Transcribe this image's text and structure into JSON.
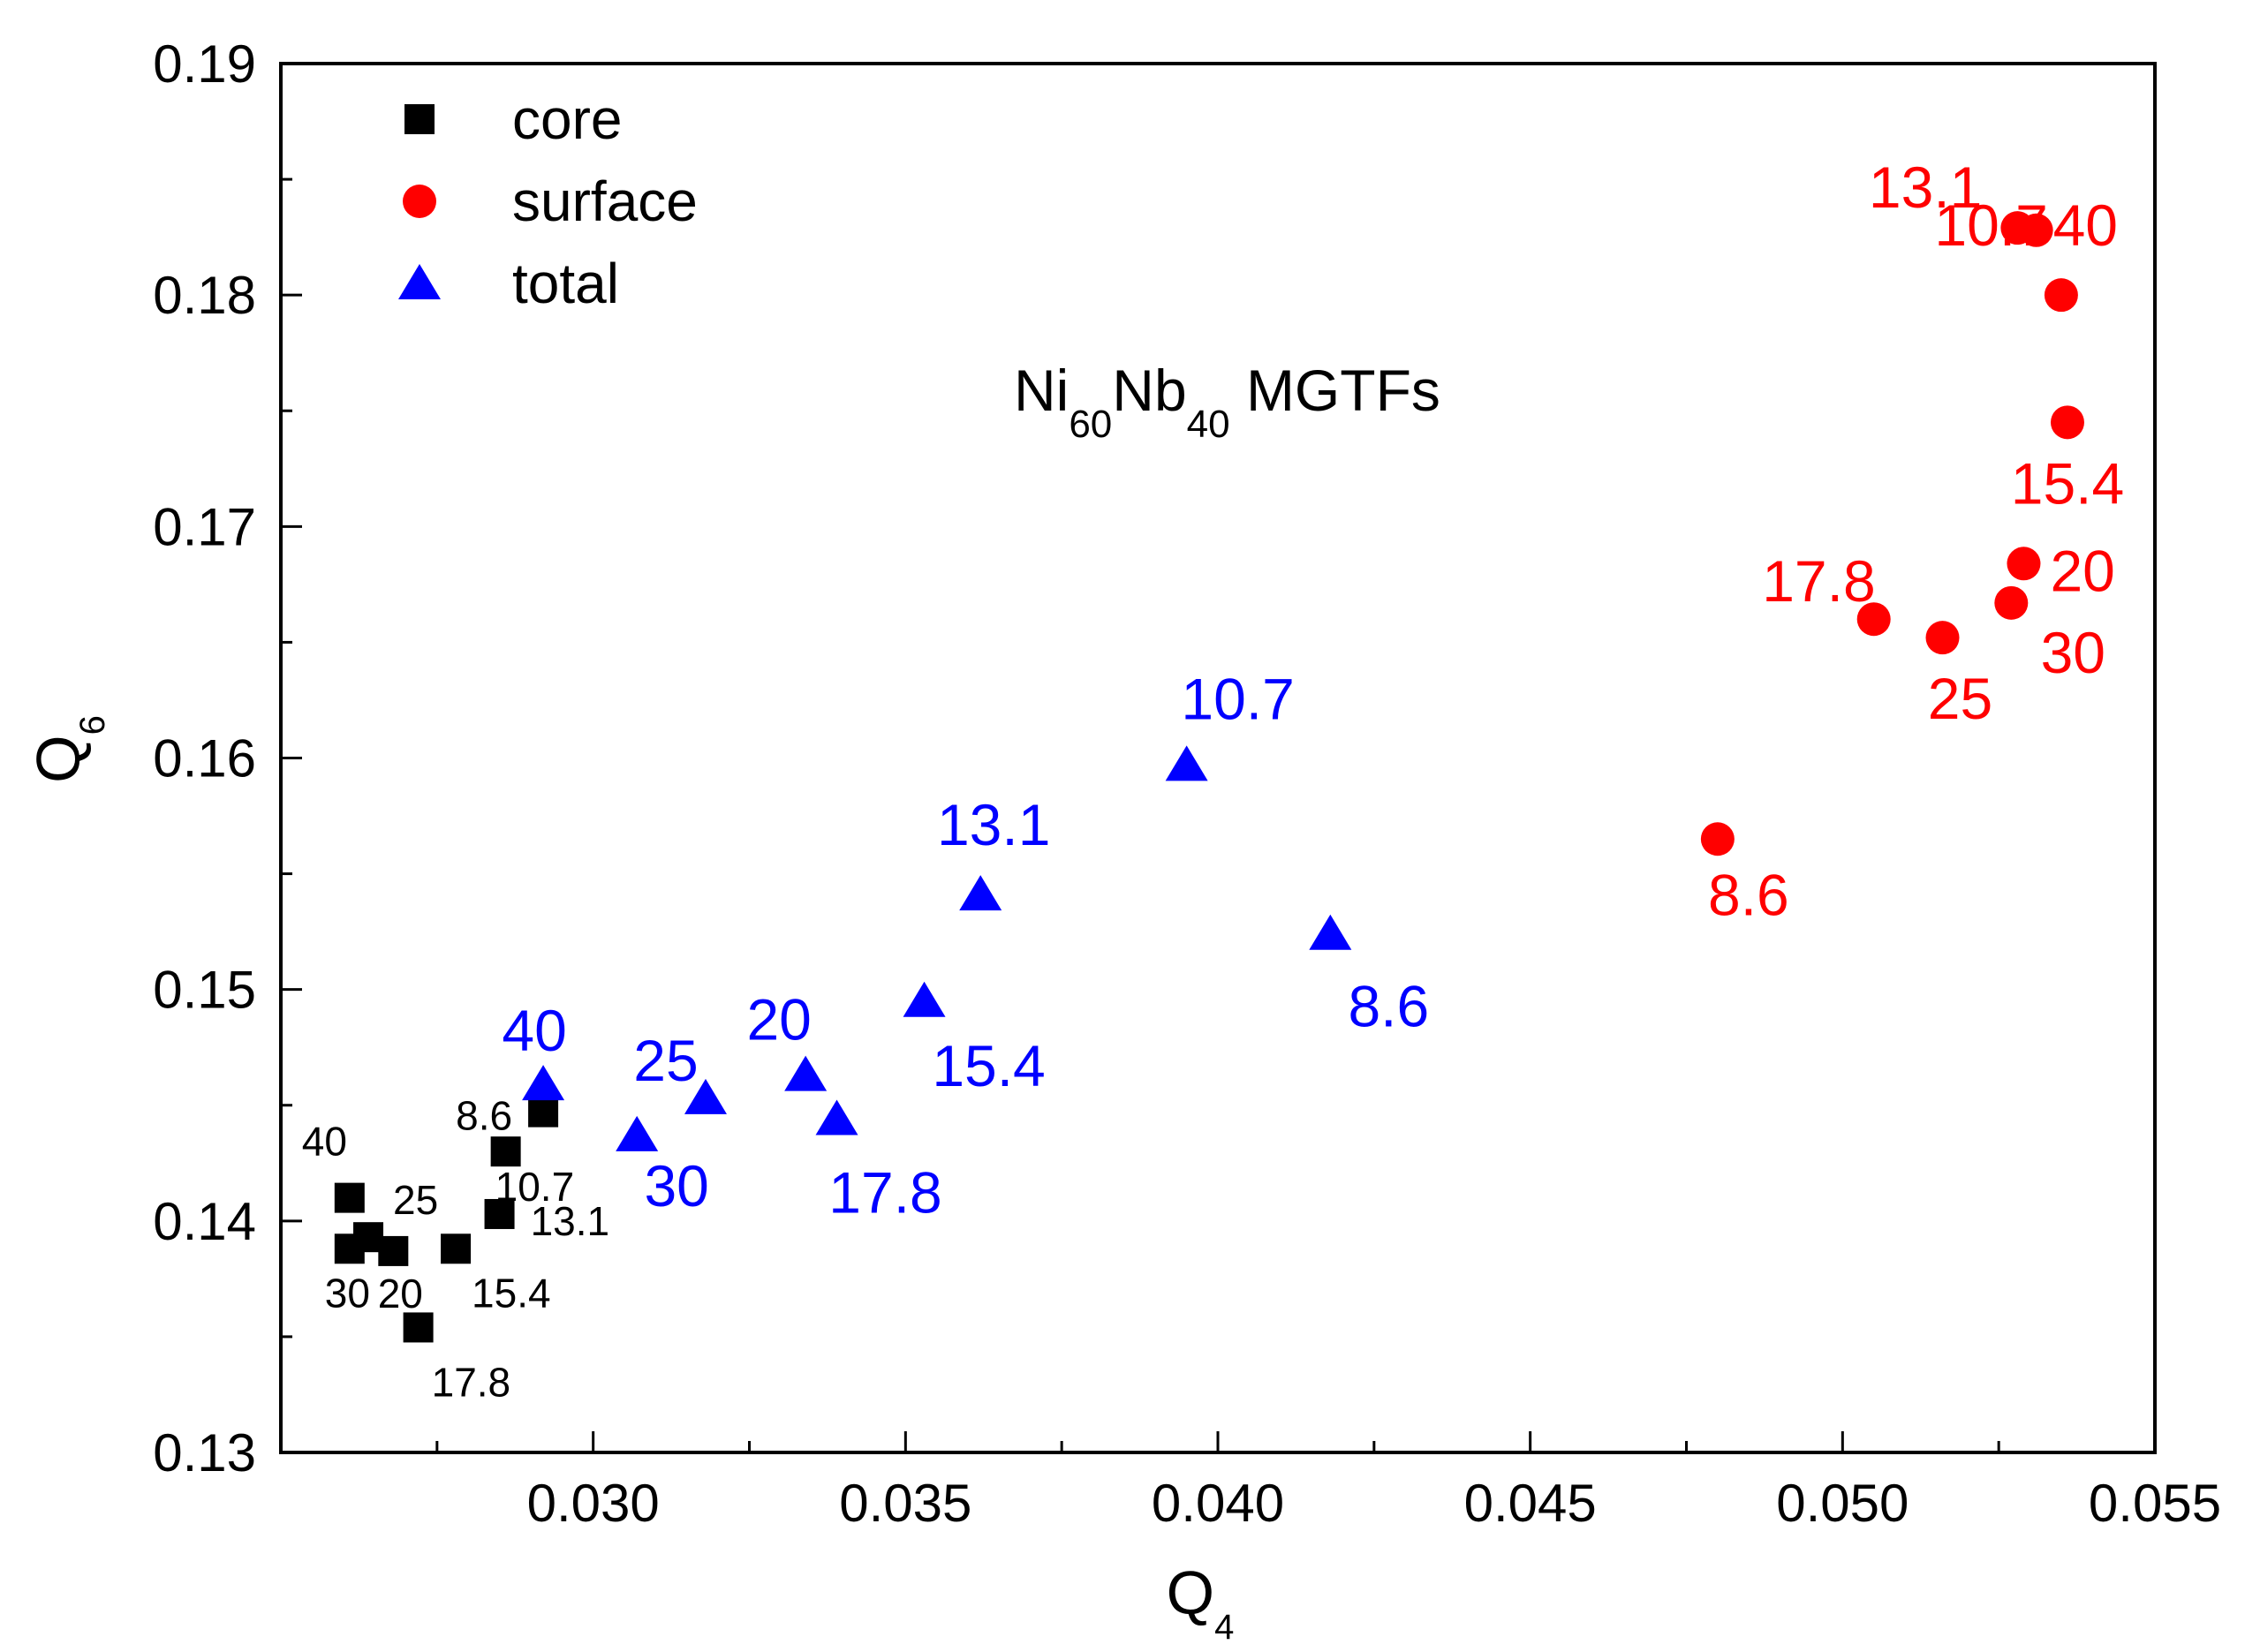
{
  "chart_data": {
    "type": "scatter",
    "title": "Ni60Nb40 MGTFs",
    "annotation": {
      "parts": [
        {
          "text": "Ni",
          "sub": false
        },
        {
          "text": "60",
          "sub": true
        },
        {
          "text": "Nb",
          "sub": false
        },
        {
          "text": "40",
          "sub": true
        },
        {
          "text": " MGTFs",
          "sub": false
        }
      ]
    },
    "xlabel": {
      "main": "Q",
      "sub": "4"
    },
    "ylabel": {
      "main": "Q",
      "sub": "6"
    },
    "xlim": [
      0.025,
      0.055
    ],
    "ylim": [
      0.13,
      0.19
    ],
    "xticks": [
      0.03,
      0.035,
      0.04,
      0.045,
      0.05,
      0.055
    ],
    "xtick_labels": [
      "0.030",
      "0.035",
      "0.040",
      "0.045",
      "0.050",
      "0.055"
    ],
    "yticks": [
      0.13,
      0.14,
      0.15,
      0.16,
      0.17,
      0.18,
      0.19
    ],
    "ytick_labels": [
      "0.13",
      "0.14",
      "0.15",
      "0.16",
      "0.17",
      "0.18",
      "0.19"
    ],
    "grid": false,
    "legend_position": "top-left",
    "series": [
      {
        "name": "core",
        "marker": "square",
        "color": "#000000",
        "points": [
          {
            "x": 0.0292,
            "y": 0.1447,
            "label": "8.6"
          },
          {
            "x": 0.0286,
            "y": 0.143,
            "label": "10.7"
          },
          {
            "x": 0.0285,
            "y": 0.1403,
            "label": "13.1"
          },
          {
            "x": 0.0278,
            "y": 0.1388,
            "label": "15.4"
          },
          {
            "x": 0.0272,
            "y": 0.1354,
            "label": "17.8"
          },
          {
            "x": 0.0268,
            "y": 0.1387,
            "label": "20"
          },
          {
            "x": 0.0264,
            "y": 0.1393,
            "label": "25"
          },
          {
            "x": 0.0261,
            "y": 0.1388,
            "label": "30"
          },
          {
            "x": 0.0261,
            "y": 0.141,
            "label": "40"
          }
        ]
      },
      {
        "name": "surface",
        "marker": "circle",
        "color": "#ff0000",
        "points": [
          {
            "x": 0.048,
            "y": 0.1565,
            "label": "8.6"
          },
          {
            "x": 0.0535,
            "y": 0.18,
            "label": "10.7"
          },
          {
            "x": 0.0528,
            "y": 0.1829,
            "label": "13.1"
          },
          {
            "x": 0.0536,
            "y": 0.1745,
            "label": "15.4"
          },
          {
            "x": 0.0505,
            "y": 0.166,
            "label": "17.8"
          },
          {
            "x": 0.0529,
            "y": 0.1684,
            "label": "20"
          },
          {
            "x": 0.0516,
            "y": 0.1652,
            "label": "25"
          },
          {
            "x": 0.0527,
            "y": 0.1667,
            "label": "30"
          },
          {
            "x": 0.0531,
            "y": 0.1828,
            "label": "40"
          }
        ]
      },
      {
        "name": "total",
        "marker": "triangle",
        "color": "#0000ff",
        "points": [
          {
            "x": 0.0418,
            "y": 0.1524,
            "label": "8.6"
          },
          {
            "x": 0.0395,
            "y": 0.1597,
            "label": "10.7"
          },
          {
            "x": 0.0362,
            "y": 0.1541,
            "label": "13.1"
          },
          {
            "x": 0.0353,
            "y": 0.1495,
            "label": "15.4"
          },
          {
            "x": 0.0339,
            "y": 0.1444,
            "label": "17.8"
          },
          {
            "x": 0.0334,
            "y": 0.1463,
            "label": "20"
          },
          {
            "x": 0.0318,
            "y": 0.1453,
            "label": "25"
          },
          {
            "x": 0.0307,
            "y": 0.1437,
            "label": "30"
          },
          {
            "x": 0.0292,
            "y": 0.1459,
            "label": "40"
          }
        ]
      }
    ]
  }
}
